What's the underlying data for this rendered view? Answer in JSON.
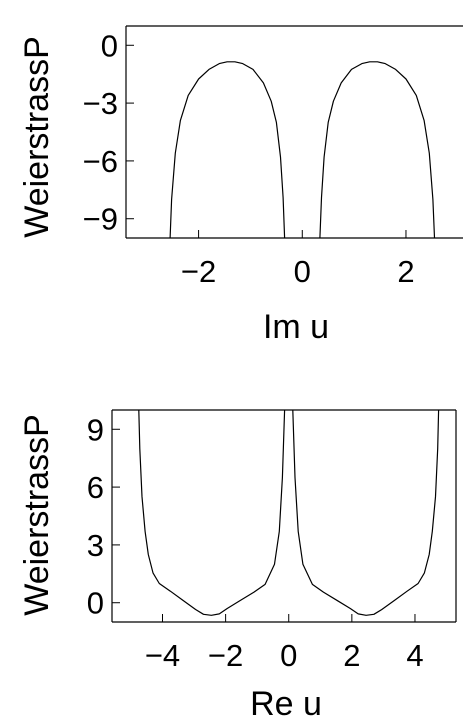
{
  "chart_data": [
    {
      "type": "line",
      "title": "",
      "xlabel": "Im u",
      "ylabel": "WeierstrassP",
      "xlim": [
        -3.4,
        3.1
      ],
      "ylim": [
        -10,
        1
      ],
      "xticks": [
        -2,
        0,
        2
      ],
      "xtick_labels": [
        "−2",
        "0",
        "2"
      ],
      "yticks": [
        0,
        -3,
        -6,
        -9
      ],
      "ytick_labels": [
        "0",
        "−3",
        "−6",
        "−9"
      ],
      "series": [
        {
          "x": [
            -2.55,
            -2.52,
            -2.45,
            -2.35,
            -2.2,
            -2.0,
            -1.8,
            -1.6,
            -1.45,
            -1.3,
            -1.15,
            -0.95,
            -0.75,
            -0.6,
            -0.5,
            -0.42,
            -0.37,
            -0.34
          ],
          "y": [
            -10,
            -8.0,
            -5.6,
            -3.9,
            -2.6,
            -1.75,
            -1.25,
            -0.95,
            -0.86,
            -0.86,
            -0.95,
            -1.25,
            -1.95,
            -2.9,
            -4.0,
            -5.8,
            -7.9,
            -10
          ]
        },
        {
          "x": [
            0.34,
            0.37,
            0.42,
            0.5,
            0.6,
            0.75,
            0.95,
            1.15,
            1.3,
            1.45,
            1.6,
            1.8,
            2.0,
            2.2,
            2.35,
            2.45,
            2.52,
            2.55
          ],
          "y": [
            -10,
            -7.9,
            -5.8,
            -4.0,
            -2.9,
            -1.95,
            -1.25,
            -0.95,
            -0.86,
            -0.86,
            -0.95,
            -1.25,
            -1.75,
            -2.6,
            -3.9,
            -5.6,
            -8.0,
            -10
          ]
        }
      ]
    },
    {
      "type": "line",
      "title": "",
      "xlabel": "Re u",
      "ylabel": "WeierstrassP",
      "xlim": [
        -5.6,
        5.3
      ],
      "ylim": [
        -1,
        10
      ],
      "xticks": [
        -4,
        -2,
        0,
        2,
        4
      ],
      "xtick_labels": [
        "−4",
        "−2",
        "0",
        "2",
        "4"
      ],
      "yticks": [
        9,
        6,
        3,
        0
      ],
      "ytick_labels": [
        "9",
        "6",
        "3",
        "0"
      ],
      "series": [
        {
          "x": [
            -4.75,
            -4.72,
            -4.65,
            -4.55,
            -4.45,
            -4.3,
            -4.1,
            -3.75,
            -3.35,
            -2.95,
            -2.7,
            -2.45,
            -2.2,
            -1.95,
            -1.55,
            -1.1,
            -0.75,
            -0.45,
            -0.3,
            -0.2,
            -0.13
          ],
          "y": [
            10,
            8.0,
            5.5,
            3.7,
            2.5,
            1.55,
            1.0,
            0.6,
            0.12,
            -0.35,
            -0.6,
            -0.65,
            -0.58,
            -0.3,
            0.1,
            0.55,
            0.95,
            2.0,
            3.7,
            6.5,
            10
          ]
        },
        {
          "x": [
            0.13,
            0.2,
            0.3,
            0.45,
            0.75,
            1.1,
            1.55,
            1.95,
            2.2,
            2.45,
            2.7,
            2.95,
            3.35,
            3.75,
            4.1,
            4.3,
            4.45,
            4.55,
            4.65,
            4.72,
            4.75
          ],
          "y": [
            10,
            6.5,
            3.7,
            2.0,
            0.95,
            0.55,
            0.1,
            -0.3,
            -0.58,
            -0.65,
            -0.6,
            -0.35,
            0.12,
            0.6,
            1.0,
            1.55,
            2.5,
            3.7,
            5.5,
            8.0,
            10
          ]
        }
      ]
    }
  ]
}
